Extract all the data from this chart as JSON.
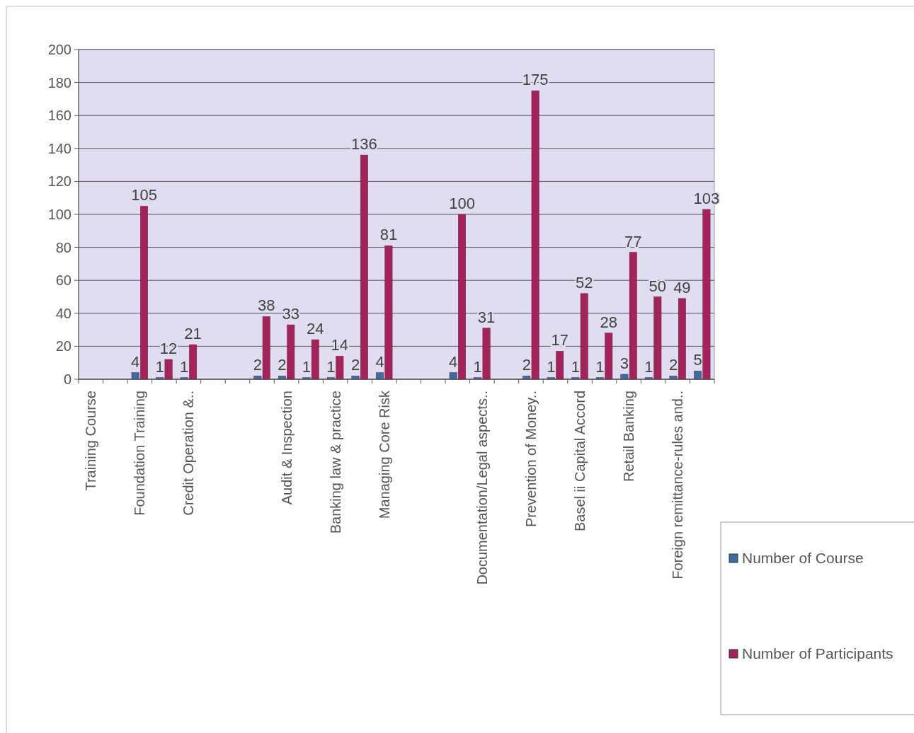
{
  "chart_data": {
    "type": "bar",
    "categories": [
      "Training Course",
      null,
      "Foundation Training",
      null,
      "Credit Operation &..",
      null,
      null,
      null,
      "Audit & Inspection",
      null,
      "Banking law & practice",
      null,
      "Managing Core Risk",
      null,
      null,
      null,
      "Documentation/Legal aspects..",
      null,
      "Prevention of Money..",
      null,
      "Basel ii Capital Accord",
      null,
      "Retail Banking",
      null,
      "Foreign remittance-rules and..",
      null
    ],
    "series": [
      {
        "name": "Number of Course",
        "color": "#3f6c9c",
        "values": [
          null,
          null,
          4,
          1,
          1,
          null,
          null,
          2,
          2,
          1,
          1,
          2,
          4,
          null,
          null,
          4,
          1,
          null,
          2,
          1,
          1,
          1,
          3,
          1,
          2,
          5
        ]
      },
      {
        "name": "Number of Participants",
        "color": "#a3245a",
        "values": [
          null,
          null,
          105,
          12,
          21,
          null,
          null,
          38,
          33,
          24,
          14,
          136,
          81,
          null,
          null,
          100,
          31,
          null,
          175,
          17,
          52,
          28,
          77,
          50,
          49,
          103
        ]
      }
    ],
    "ylim": [
      0,
      200
    ],
    "yticks": [
      0,
      20,
      40,
      60,
      80,
      100,
      120,
      140,
      160,
      180,
      200
    ],
    "grid": "y",
    "legend": "right",
    "data_labels": true
  }
}
